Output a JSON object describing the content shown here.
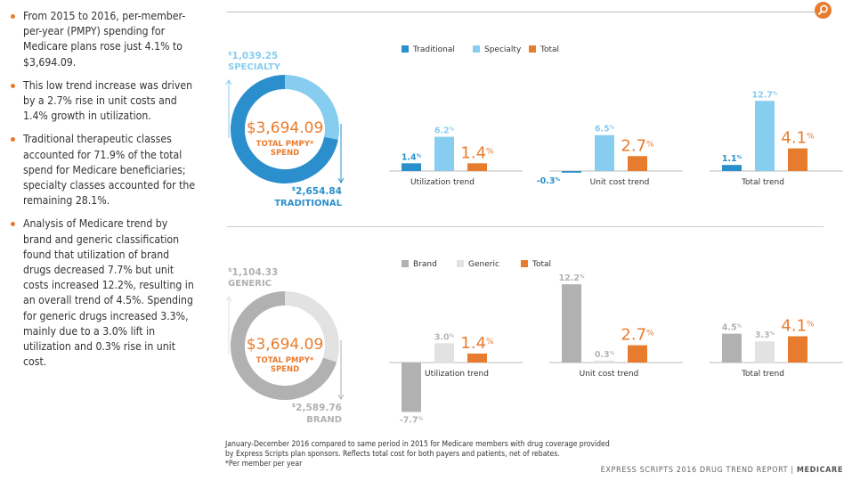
{
  "colors": {
    "traditional": "#2a8fcc",
    "specialty": "#87cdef",
    "total": "#e87c2e",
    "brand": "#b1b1b1",
    "generic": "#e2e2e2",
    "bullet": "#e87c2e"
  },
  "bullets": [
    "From 2015 to 2016, per-member-per-year (PMPY) spending for Medicare plans rose just 4.1% to $3,694.09.",
    "This low trend increase was driven by a 2.7% rise in unit costs and 1.4% growth in utilization.",
    "Traditional therapeutic classes accounted for 71.9% of the total spend for Medicare beneficiaries; specialty classes accounted for the remaining 28.1%.",
    "Analysis of Medicare trend by brand and generic classification found that utilization of brand drugs decreased 7.7% but unit costs increased 12.2%, resulting in an overall trend of 4.5%. Spending for generic drugs increased 3.3%, mainly due to a 3.0% lift in utilization and 0.3% rise in unit cost."
  ],
  "search_icon": "magnifier-icon",
  "chart_data": [
    {
      "type": "pie",
      "variant": "donut",
      "center_value": "$3,694.09",
      "center_label_1": "TOTAL PMPY*",
      "center_label_2": "SPEND",
      "slices": [
        {
          "name": "SPECIALTY",
          "value": 1039.25,
          "value_label": "1,039.25",
          "currency": "$"
        },
        {
          "name": "TRADITIONAL",
          "value": 2654.84,
          "value_label": "2,654.84",
          "currency": "$"
        }
      ]
    },
    {
      "type": "bar",
      "legend": [
        "Traditional",
        "Specialty",
        "Total"
      ],
      "legend_position": "top",
      "groups": [
        {
          "label": "Utilization trend",
          "values": [
            1.4,
            6.2,
            1.4
          ]
        },
        {
          "label": "Unit cost trend",
          "values": [
            -0.3,
            6.5,
            2.7
          ]
        },
        {
          "label": "Total trend",
          "values": [
            1.1,
            12.7,
            4.1
          ]
        }
      ]
    },
    {
      "type": "pie",
      "variant": "donut",
      "center_value": "$3,694.09",
      "center_label_1": "TOTAL PMPY*",
      "center_label_2": "SPEND",
      "slices": [
        {
          "name": "GENERIC",
          "value": 1104.33,
          "value_label": "1,104.33",
          "currency": "$"
        },
        {
          "name": "BRAND",
          "value": 2589.76,
          "value_label": "2,589.76",
          "currency": "$"
        }
      ]
    },
    {
      "type": "bar",
      "legend": [
        "Brand",
        "Generic",
        "Total"
      ],
      "legend_position": "top",
      "groups": [
        {
          "label": "Utilization trend",
          "values": [
            -7.7,
            3.0,
            1.4
          ]
        },
        {
          "label": "Unit cost trend",
          "values": [
            12.2,
            0.3,
            2.7
          ]
        },
        {
          "label": "Total trend",
          "values": [
            4.5,
            3.3,
            4.1
          ]
        }
      ]
    }
  ],
  "footnote_lines": [
    "January-December 2016 compared to same period in 2015 for Medicare members with drug coverage provided",
    "by Express Scripts plan sponsors. Reflects total cost for both payers and patients, net of rebates.",
    "*Per member per year"
  ],
  "footer": {
    "report": "EXPRESS SCRIPTS 2016 DRUG TREND REPORT",
    "separator": "|",
    "section": "MEDICARE"
  }
}
